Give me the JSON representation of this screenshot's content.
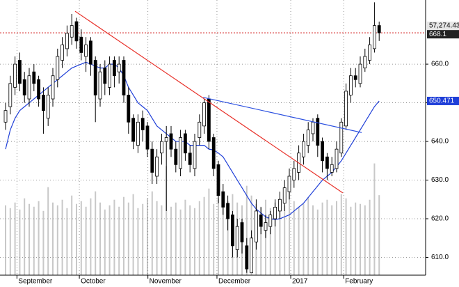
{
  "chart_data": {
    "type": "candlestick",
    "categories": [
      null,
      null,
      null,
      null,
      null,
      null,
      null,
      null,
      null,
      null,
      null,
      null,
      null,
      null,
      null,
      null,
      null,
      null,
      null,
      null,
      null,
      null,
      null,
      null,
      null,
      null,
      null,
      null,
      null,
      null,
      null,
      null,
      null,
      null,
      null,
      null,
      null,
      null,
      null,
      null,
      null,
      null,
      null,
      null,
      null,
      null,
      null,
      null,
      null,
      null,
      null,
      null,
      null,
      null,
      null,
      null,
      null,
      null,
      null,
      null,
      null,
      null,
      null,
      null,
      null,
      null,
      null,
      null,
      null,
      null,
      null,
      null,
      null,
      null,
      null,
      null,
      null,
      null,
      null,
      null
    ],
    "open": [
      645,
      649,
      654,
      661,
      656,
      651,
      658,
      656,
      652,
      646,
      651,
      656,
      661,
      664,
      667,
      671,
      667,
      662,
      666,
      661,
      651,
      659,
      654,
      661,
      658,
      661,
      652,
      646,
      639,
      646,
      644,
      638,
      631,
      637,
      640,
      642,
      638,
      633,
      642,
      637,
      633,
      641,
      644,
      651,
      641,
      634,
      627,
      624,
      621,
      612,
      619,
      613,
      606,
      614,
      621,
      617,
      618,
      620,
      622,
      624,
      627,
      630,
      632,
      636,
      639,
      642,
      646,
      640,
      636,
      632,
      633,
      637,
      644,
      652,
      657,
      655,
      659,
      661,
      664,
      670
    ],
    "high": [
      650,
      657,
      662,
      663,
      658,
      659,
      660,
      657,
      654,
      654,
      659,
      664,
      667,
      670,
      673,
      672,
      669,
      667,
      667,
      662,
      660,
      661,
      662,
      662,
      662,
      662,
      654,
      647,
      647,
      648,
      645,
      640,
      638,
      642,
      644,
      644,
      640,
      643,
      643,
      639,
      642,
      647,
      651,
      652,
      642,
      635,
      629,
      626,
      622,
      620,
      620,
      615,
      617,
      625,
      623,
      621,
      622,
      625,
      627,
      630,
      633,
      635,
      639,
      642,
      645,
      646,
      647,
      641,
      637,
      636,
      640,
      646,
      655,
      659,
      659,
      662,
      664,
      667,
      676,
      671
    ],
    "low": [
      643,
      647,
      652,
      653,
      650,
      649,
      653,
      649,
      642,
      644,
      649,
      654,
      659,
      662,
      665,
      664,
      661,
      658,
      657,
      645,
      649,
      652,
      652,
      654,
      655,
      650,
      642,
      638,
      637,
      640,
      636,
      629,
      629,
      634,
      622,
      636,
      632,
      631,
      635,
      632,
      631,
      639,
      642,
      638,
      631,
      624,
      621,
      617,
      610,
      610,
      611,
      606,
      606,
      612,
      616,
      615,
      616,
      618,
      620,
      622,
      625,
      628,
      630,
      634,
      637,
      640,
      636,
      632,
      630,
      631,
      632,
      636,
      643,
      650,
      654,
      654,
      658,
      660,
      663,
      666
    ],
    "close": [
      648,
      655,
      660,
      655,
      652,
      657,
      655,
      651,
      648,
      652,
      657,
      662,
      665,
      668,
      670,
      666,
      663,
      665,
      660,
      652,
      658,
      655,
      660,
      657,
      660,
      652,
      645,
      640,
      645,
      643,
      638,
      632,
      636,
      640,
      641,
      638,
      634,
      641,
      637,
      634,
      640,
      645,
      650,
      640,
      633,
      626,
      623,
      620,
      613,
      618,
      614,
      607,
      615,
      622,
      618,
      619,
      621,
      623,
      625,
      628,
      631,
      633,
      637,
      640,
      643,
      645,
      639,
      635,
      633,
      634,
      638,
      645,
      653,
      657,
      656,
      660,
      662,
      665,
      670,
      668.1
    ],
    "ylim": [
      605.4,
      676.6
    ],
    "yticks": [
      {
        "value": 610,
        "label": "610.0"
      },
      {
        "value": 620,
        "label": "620.0"
      },
      {
        "value": 630,
        "label": "630.0"
      },
      {
        "value": 640,
        "label": "640.0"
      },
      {
        "value": 650,
        "label": "650.0"
      },
      {
        "value": 660,
        "label": "660.0"
      }
    ],
    "xticks": [
      {
        "value": 2.4,
        "label": "September"
      },
      {
        "value": 15.6,
        "label": "October"
      },
      {
        "value": 30.1,
        "label": "November"
      },
      {
        "value": 44.7,
        "label": "December"
      },
      {
        "value": 60.3,
        "label": "2017"
      },
      {
        "value": 71.5,
        "label": "February"
      }
    ],
    "grid": true,
    "volume": {
      "color": "#c8c8c8",
      "vlim": [
        0,
        197000
      ],
      "label": "57,274.43",
      "values": [
        50000,
        48000,
        52000,
        47000,
        55000,
        51000,
        49000,
        53000,
        46000,
        63000,
        52000,
        50000,
        54000,
        48000,
        57000,
        51000,
        53000,
        49000,
        55000,
        60000,
        52000,
        47000,
        50000,
        54000,
        49000,
        56000,
        52000,
        58000,
        48000,
        51000,
        55000,
        60000,
        53000,
        50000,
        78000,
        49000,
        52000,
        47000,
        54000,
        50000,
        48000,
        53000,
        56000,
        62000,
        51000,
        55000,
        49000,
        53000,
        58000,
        52000,
        50000,
        64000,
        57000,
        51000,
        49000,
        54000,
        48000,
        52000,
        55000,
        50000,
        60000,
        53000,
        49000,
        51000,
        56000,
        50000,
        47000,
        52000,
        54000,
        50000,
        53000,
        58000,
        55000,
        49000,
        52000,
        51000,
        50000,
        54000,
        80000,
        57274.43
      ]
    },
    "ma": {
      "color": "#1f3fd8",
      "label": "650.471",
      "values": [
        638,
        643,
        646,
        648,
        649,
        650,
        651,
        652,
        653,
        654,
        655,
        656,
        657,
        658,
        659,
        659.5,
        660,
        660.5,
        660,
        659.5,
        659,
        659,
        660,
        660,
        659,
        657,
        654,
        652,
        650,
        649,
        648,
        646,
        644,
        643,
        642,
        641,
        640,
        640,
        640,
        639,
        639,
        639,
        639,
        638,
        637.8,
        637,
        636,
        634,
        632,
        630,
        628,
        626,
        624,
        622.5,
        621.5,
        620.5,
        620,
        619.8,
        620,
        620.5,
        621,
        622,
        623,
        624,
        625.5,
        627,
        628.5,
        630,
        631,
        632,
        633.5,
        635,
        637,
        639,
        641,
        643,
        645,
        647,
        649,
        650.471
      ]
    },
    "hline": {
      "value": 668.1,
      "label": "668.1",
      "color": "#d01010"
    },
    "trendlines": [
      {
        "color": "#e8312a",
        "x": [
          14.7,
          71.3
        ],
        "y": [
          673.7,
          626.7
        ]
      },
      {
        "color": "#2a4fe0",
        "x": [
          41.8,
          75.3
        ],
        "y": [
          651.4,
          642.3
        ]
      }
    ]
  }
}
